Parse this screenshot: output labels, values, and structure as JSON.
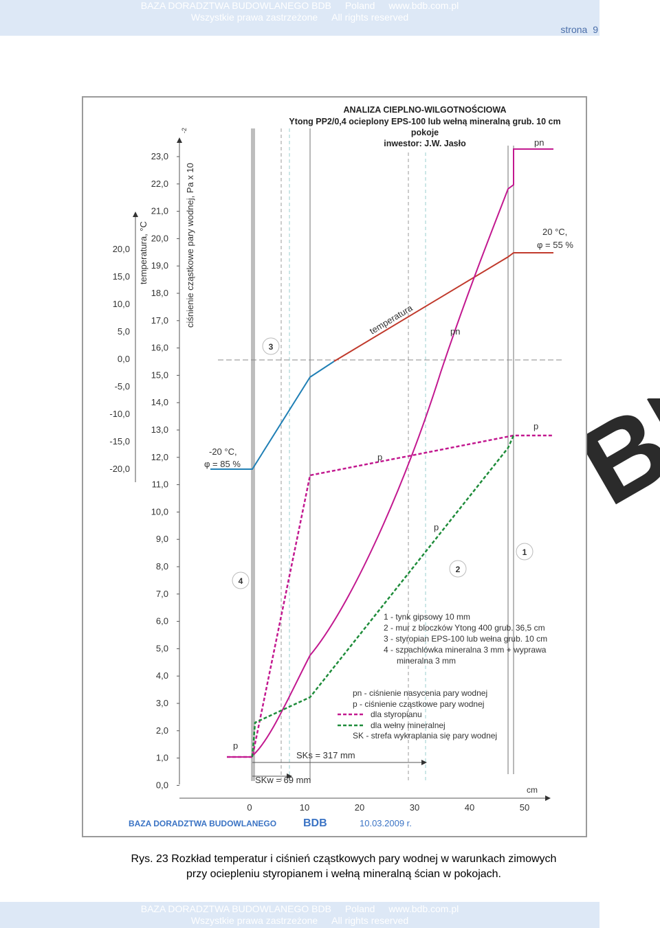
{
  "header": {
    "line1": [
      "BAZA DORADZTWA BUDOWLANEGO BDB",
      "Poland",
      "www.bdb.com.pl"
    ],
    "line2": [
      "Wszystkie prawa zastrzeżone",
      "All rights reserved"
    ],
    "page_label": "strona",
    "page_number": "9"
  },
  "footer": {
    "line1": [
      "BAZA DORADZTWA BUDOWLANEGO BDB",
      "Poland",
      "www.bdb.com.pl"
    ],
    "line2": [
      "Wszystkie prawa zastrzeżone",
      "All rights reserved"
    ]
  },
  "caption": {
    "line1": "Rys. 23  Rozkład temperatur i ciśnień cząstkowych pary wodnej w warunkach zimowych",
    "line2": "przy ociepleniu styropianem i wełną mineralną ścian w pokojach."
  },
  "watermark": "BDB",
  "figure": {
    "title": [
      "ANALIZA CIEPLNO-WILGOTNOŚCIOWA",
      "Ytong PP2/0,4 ocieplony EPS-100 lub wełną mineralną grub. 10 cm",
      "pokoje",
      "inwestor: J.W. Jasło"
    ],
    "ylabel_temperature": "temperatura, °C",
    "ylabel_pressure": "ciśnienie cząstkowe pary wodnej, Pa x 10",
    "ylabel_pressure_sup": "-2",
    "xlabel_unit": "cm",
    "temp_ticks": [
      "20,0",
      "15,0",
      "10,0",
      "5,0",
      "0,0",
      "-5,0",
      "-10,0",
      "-15,0",
      "-20,0"
    ],
    "pressure_ticks": [
      "23,0",
      "22,0",
      "21,0",
      "20,0",
      "19,0",
      "18,0",
      "17,0",
      "16,0",
      "15,0",
      "14,0",
      "13,0",
      "12,0",
      "11,0",
      "10,0",
      "9,0",
      "8,0",
      "7,0",
      "6,0",
      "5,0",
      "4,0",
      "3,0",
      "2,0",
      "1,0",
      "0,0"
    ],
    "x_ticks": [
      "0",
      "10",
      "20",
      "30",
      "40",
      "50"
    ],
    "outside_label": [
      "-20 °C,",
      "φ = 85 %"
    ],
    "inside_label": [
      "20 °C,",
      "φ = 55 %"
    ],
    "curve_labels": {
      "temperatura": "temperatura",
      "pn_top": "pn",
      "pn_mid": "pn",
      "p_left": "p",
      "p_mid": "p",
      "p_right": "p",
      "p_green": "p"
    },
    "layer_markers": [
      "1",
      "2",
      "3",
      "4"
    ],
    "legend_layers": [
      "1 - tynk gipsowy 10 mm",
      "2 - mur z bloczków Ytong 400 grub. 36,5 cm",
      "3 - styropian EPS-100 lub wełna grub. 10 cm",
      "4 - szpachlówka mineralna 3 mm + wyprawa",
      "mineralna 3 mm"
    ],
    "legend_curves": [
      "pn - ciśnienie nasycenia pary wodnej",
      "p   - ciśnienie cząstkowe pary wodnej",
      "dla styropianu",
      "dla wełny mineralnej",
      "SK - strefa wykraplania się pary wodnej"
    ],
    "sk_labels": {
      "sks": "SKs = 317 mm",
      "skw": "SKw = 69 mm"
    },
    "footer_brand": "BAZA DORADZTWA BUDOWLANEGO",
    "footer_brand_bold": "BDB",
    "footer_date": "10.03.2009 r.",
    "colors": {
      "temperature": "#c0392b",
      "temperature_cold": "#1f7fb5",
      "pn": "#c2188f",
      "p_styro": "#c2188f",
      "p_wool": "#1e8c3a",
      "axes": "#555555"
    }
  }
}
